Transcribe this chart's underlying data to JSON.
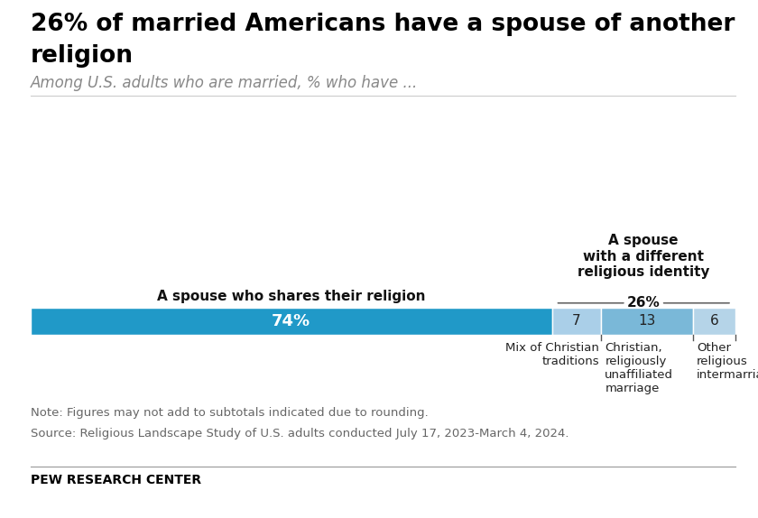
{
  "title_line1": "26% of married Americans have a spouse of another",
  "title_line2": "religion",
  "subtitle": "Among U.S. adults who are married, % who have ...",
  "bar_segments": [
    74,
    7,
    13,
    6
  ],
  "bar_colors": [
    "#2099c8",
    "#aacfe8",
    "#7ab8d8",
    "#b5d4e8"
  ],
  "bar_labels": [
    "74%",
    "7",
    "13",
    "6"
  ],
  "bar_label_colors": [
    "#ffffff",
    "#222222",
    "#222222",
    "#222222"
  ],
  "label_left": "A spouse who shares their religion",
  "label_right_title": "A spouse\nwith a different\nreligious identity",
  "label_right_pct": "26%",
  "sub_labels": [
    "Mix of Christian\ntraditions",
    "Christian,\nreligiously\nunaffiliated\nmarriage",
    "Other\nreligious\nintermarriages"
  ],
  "note_line1": "Note: Figures may not add to subtotals indicated due to rounding.",
  "note_line2": "Source: Religious Landscape Study of U.S. adults conducted July 17, 2023-March 4, 2024.",
  "footer": "PEW RESEARCH CENTER",
  "background_color": "#ffffff",
  "title_fontsize": 19,
  "subtitle_fontsize": 12,
  "bar_label_fontsize_large": 13,
  "bar_label_fontsize_small": 11,
  "note_fontsize": 9.5,
  "footer_fontsize": 10
}
